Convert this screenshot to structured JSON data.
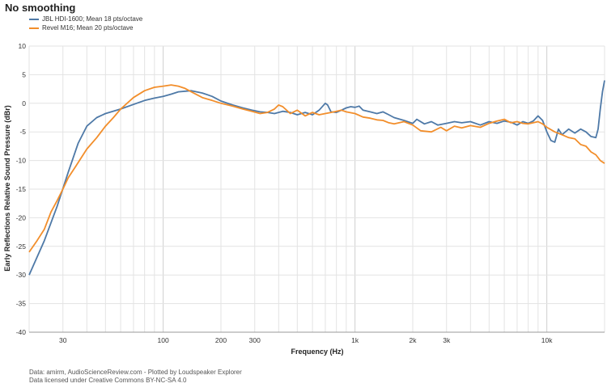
{
  "title": "No smoothing",
  "footer": {
    "line1": "Data: amirm, AudioScienceReview.com - Plotted by Loudspeaker Explorer",
    "line2": "Data licensed under Creative Commons BY-NC-SA 4.0"
  },
  "chart_data": {
    "type": "line",
    "title": "No smoothing",
    "xlabel": "Frequency (Hz)",
    "ylabel": "Early Reflections Relative Sound Pressure (dBr)",
    "xscale": "log",
    "xlim": [
      20,
      20000
    ],
    "ylim": [
      -40,
      10
    ],
    "grid": true,
    "legend_position": "top-left",
    "x_tick_labels": [
      {
        "value": 30,
        "label": "30"
      },
      {
        "value": 100,
        "label": "100"
      },
      {
        "value": 200,
        "label": "200"
      },
      {
        "value": 300,
        "label": "300"
      },
      {
        "value": 1000,
        "label": "1k"
      },
      {
        "value": 2000,
        "label": "2k"
      },
      {
        "value": 3000,
        "label": "3k"
      },
      {
        "value": 10000,
        "label": "10k"
      }
    ],
    "y_ticks": [
      10,
      5,
      0,
      -5,
      -10,
      -15,
      -20,
      -25,
      -30,
      -35,
      -40
    ],
    "series": [
      {
        "name": "JBL HDI-1600; Mean 18 pts/octave",
        "color": "#4e79a7",
        "x": [
          20,
          24,
          28,
          32,
          36,
          40,
          45,
          50,
          60,
          70,
          80,
          90,
          100,
          110,
          120,
          140,
          160,
          180,
          200,
          230,
          260,
          290,
          320,
          350,
          380,
          420,
          460,
          500,
          550,
          600,
          650,
          700,
          720,
          750,
          800,
          850,
          900,
          950,
          1000,
          1050,
          1100,
          1200,
          1300,
          1400,
          1500,
          1600,
          1800,
          2000,
          2100,
          2300,
          2500,
          2700,
          3000,
          3300,
          3600,
          4000,
          4500,
          5000,
          5500,
          6000,
          6500,
          7000,
          7500,
          8000,
          8500,
          9000,
          9500,
          10000,
          10500,
          11000,
          11500,
          12000,
          13000,
          14000,
          15000,
          16000,
          17000,
          18000,
          18500,
          19000,
          19500,
          20000
        ],
        "values": [
          -30,
          -24,
          -18,
          -12,
          -7,
          -4,
          -2.5,
          -1.8,
          -1,
          -0.2,
          0.5,
          0.9,
          1.2,
          1.6,
          2,
          2.2,
          1.8,
          1.2,
          0.4,
          -0.3,
          -0.8,
          -1.2,
          -1.5,
          -1.6,
          -1.8,
          -1.4,
          -1.6,
          -2,
          -1.6,
          -2,
          -1.2,
          0,
          -0.3,
          -1.5,
          -1.6,
          -1.2,
          -0.8,
          -0.6,
          -0.7,
          -0.5,
          -1.2,
          -1.5,
          -1.8,
          -1.5,
          -2,
          -2.5,
          -3,
          -3.5,
          -2.8,
          -3.6,
          -3.2,
          -3.8,
          -3.5,
          -3.2,
          -3.4,
          -3.2,
          -3.8,
          -3.2,
          -3.5,
          -3.1,
          -3.3,
          -3.8,
          -3.2,
          -3.5,
          -3.1,
          -2.2,
          -3,
          -5,
          -6.5,
          -6.8,
          -4.5,
          -5.5,
          -4.5,
          -5.2,
          -4.5,
          -5,
          -5.8,
          -6,
          -4.5,
          -1,
          2,
          4
        ]
      },
      {
        "name": "Revel M16; Mean 20 pts/octave",
        "color": "#f28e2b",
        "x": [
          20,
          22,
          24,
          26,
          28,
          30,
          32,
          35,
          40,
          45,
          50,
          55,
          60,
          70,
          80,
          90,
          100,
          110,
          120,
          130,
          140,
          160,
          180,
          200,
          230,
          260,
          290,
          320,
          350,
          380,
          400,
          420,
          460,
          500,
          550,
          600,
          650,
          700,
          750,
          800,
          850,
          900,
          1000,
          1100,
          1200,
          1300,
          1400,
          1500,
          1600,
          1800,
          2000,
          2200,
          2500,
          2800,
          3000,
          3300,
          3600,
          4000,
          4500,
          5000,
          5500,
          6000,
          6500,
          7000,
          7500,
          8000,
          8500,
          9000,
          9500,
          10000,
          11000,
          12000,
          13000,
          14000,
          15000,
          16000,
          17000,
          18000,
          19000,
          20000
        ],
        "values": [
          -26,
          -24,
          -22,
          -19,
          -17,
          -15,
          -13,
          -11,
          -8,
          -6,
          -4,
          -2.5,
          -1,
          1,
          2.2,
          2.8,
          3,
          3.2,
          3,
          2.6,
          2,
          1,
          0.5,
          0,
          -0.5,
          -1,
          -1.4,
          -1.8,
          -1.6,
          -1,
          -0.3,
          -0.6,
          -1.8,
          -1.2,
          -2.2,
          -1.6,
          -2,
          -1.8,
          -1.6,
          -1.4,
          -1.2,
          -1.5,
          -1.8,
          -2.4,
          -2.6,
          -2.9,
          -3,
          -3.4,
          -3.6,
          -3.2,
          -3.8,
          -4.8,
          -5,
          -4.2,
          -4.8,
          -4,
          -4.3,
          -3.9,
          -4.2,
          -3.5,
          -3.1,
          -2.8,
          -3.4,
          -3.2,
          -3.5,
          -3.6,
          -3.4,
          -3.2,
          -3.6,
          -4.2,
          -5,
          -5.5,
          -6,
          -6.2,
          -7.2,
          -7.5,
          -8.5,
          -9,
          -10,
          -10.5
        ]
      }
    ]
  }
}
